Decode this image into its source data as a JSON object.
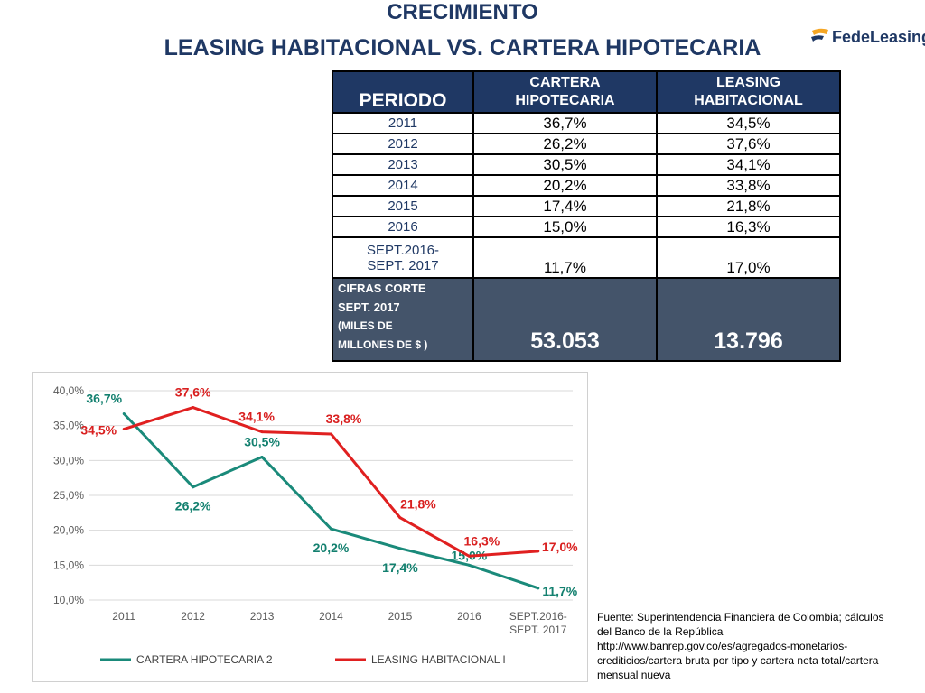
{
  "header": {
    "title_line1": "CRECIMIENTO",
    "title_line2": "LEASING HABITACIONAL  VS.  CARTERA HIPOTECARIA",
    "logo_text_1": "Fede",
    "logo_text_2": "Leasing"
  },
  "table": {
    "col_periodo": "PERIODO",
    "col_cartera": [
      "CARTERA",
      "HIPOTECARIA"
    ],
    "col_leasing": [
      "LEASING",
      "HABITACIONAL"
    ],
    "rows": [
      {
        "periodo": "2011",
        "cartera": "36,7%",
        "leasing": "34,5%"
      },
      {
        "periodo": "2012",
        "cartera": "26,2%",
        "leasing": "37,6%"
      },
      {
        "periodo": "2013",
        "cartera": "30,5%",
        "leasing": "34,1%"
      },
      {
        "periodo": "2014",
        "cartera": "20,2%",
        "leasing": "33,8%"
      },
      {
        "periodo": "2015",
        "cartera": "17,4%",
        "leasing": "21,8%"
      },
      {
        "periodo": "2016",
        "cartera": "15,0%",
        "leasing": "16,3%"
      }
    ],
    "last_row": {
      "periodo_1": "SEPT.2016-",
      "periodo_2": "SEPT. 2017",
      "cartera": "11,7%",
      "leasing": "17,0%"
    },
    "footer": {
      "label_1": "CIFRAS CORTE",
      "label_2": "SEPT. 2017",
      "label_3": "(MILES DE",
      "label_4": "MILLONES DE $ )",
      "cartera_value": "53.053",
      "leasing_value": "13.796"
    }
  },
  "chart_data": {
    "type": "line",
    "categories": [
      "2011",
      "2012",
      "2013",
      "2014",
      "2015",
      "2016",
      "SEPT.2016-\nSEPT. 2017"
    ],
    "ylim": [
      10,
      40
    ],
    "yticks": [
      "10,0%",
      "15,0%",
      "20,0%",
      "25,0%",
      "30,0%",
      "35,0%",
      "40,0%"
    ],
    "grid": true,
    "legend_position": "bottom",
    "series": [
      {
        "name": "CARTERA HIPOTECARIA 2",
        "color": "#1a8a7a",
        "values": [
          36.7,
          26.2,
          30.5,
          20.2,
          17.4,
          15.0,
          11.7
        ],
        "labels": [
          "36,7%",
          "26,2%",
          "30,5%",
          "20,2%",
          "17,4%",
          "15,0%",
          "11,7%"
        ]
      },
      {
        "name": "LEASING HABITACIONAL I",
        "color": "#e02020",
        "values": [
          34.5,
          37.6,
          34.1,
          33.8,
          21.8,
          16.3,
          17.0
        ],
        "labels": [
          "34,5%",
          "37,6%",
          "34,1%",
          "33,8%",
          "21,8%",
          "16,3%",
          "17,0%"
        ]
      }
    ]
  },
  "source": {
    "line1": "Fuente: Superintendencia Financiera de Colombia; cálculos",
    "line2": "del Banco de la República",
    "line3": "http://www.banrep.gov.co/es/agregados-monetarios-",
    "line4": "crediticios/cartera bruta por tipo y cartera neta total/cartera",
    "line5": "mensual nueva"
  }
}
